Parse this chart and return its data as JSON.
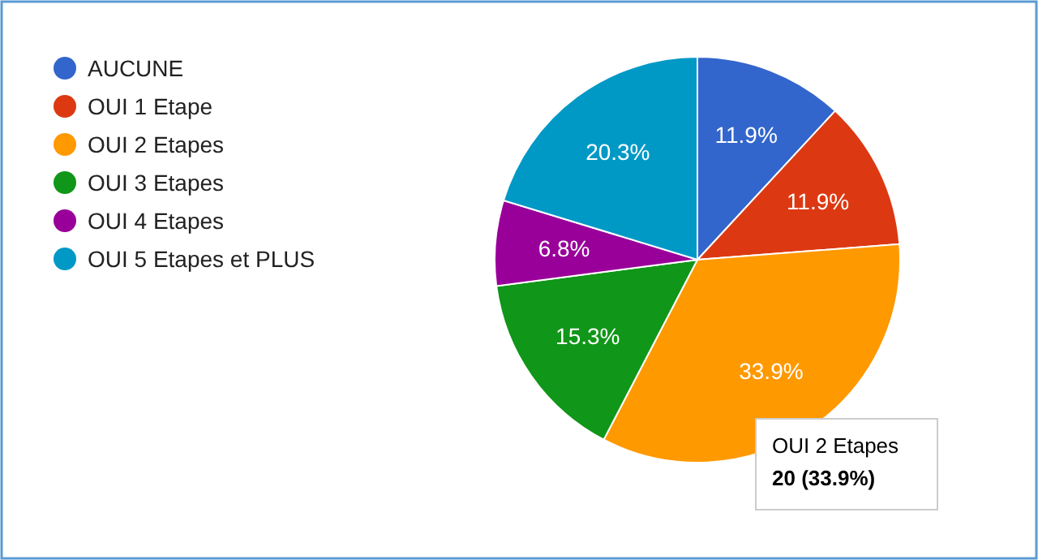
{
  "chart_data": {
    "type": "pie",
    "categories": [
      "AUCUNE",
      "OUI 1 Etape",
      "OUI 2 Etapes",
      "OUI 3 Etapes",
      "OUI 4 Etapes",
      "OUI 5 Etapes et PLUS"
    ],
    "values": [
      11.9,
      11.9,
      33.9,
      15.3,
      6.8,
      20.3
    ],
    "value_labels": [
      "11.9%",
      "11.9%",
      "33.9%",
      "15.3%",
      "6.8%",
      "20.3%"
    ],
    "colors": [
      "#3366cc",
      "#dc3912",
      "#ff9900",
      "#109618",
      "#990099",
      "#0099c6"
    ],
    "legend": "left",
    "annotations": [
      "OUI 2 Etapes",
      "20 (33.9%)"
    ]
  }
}
